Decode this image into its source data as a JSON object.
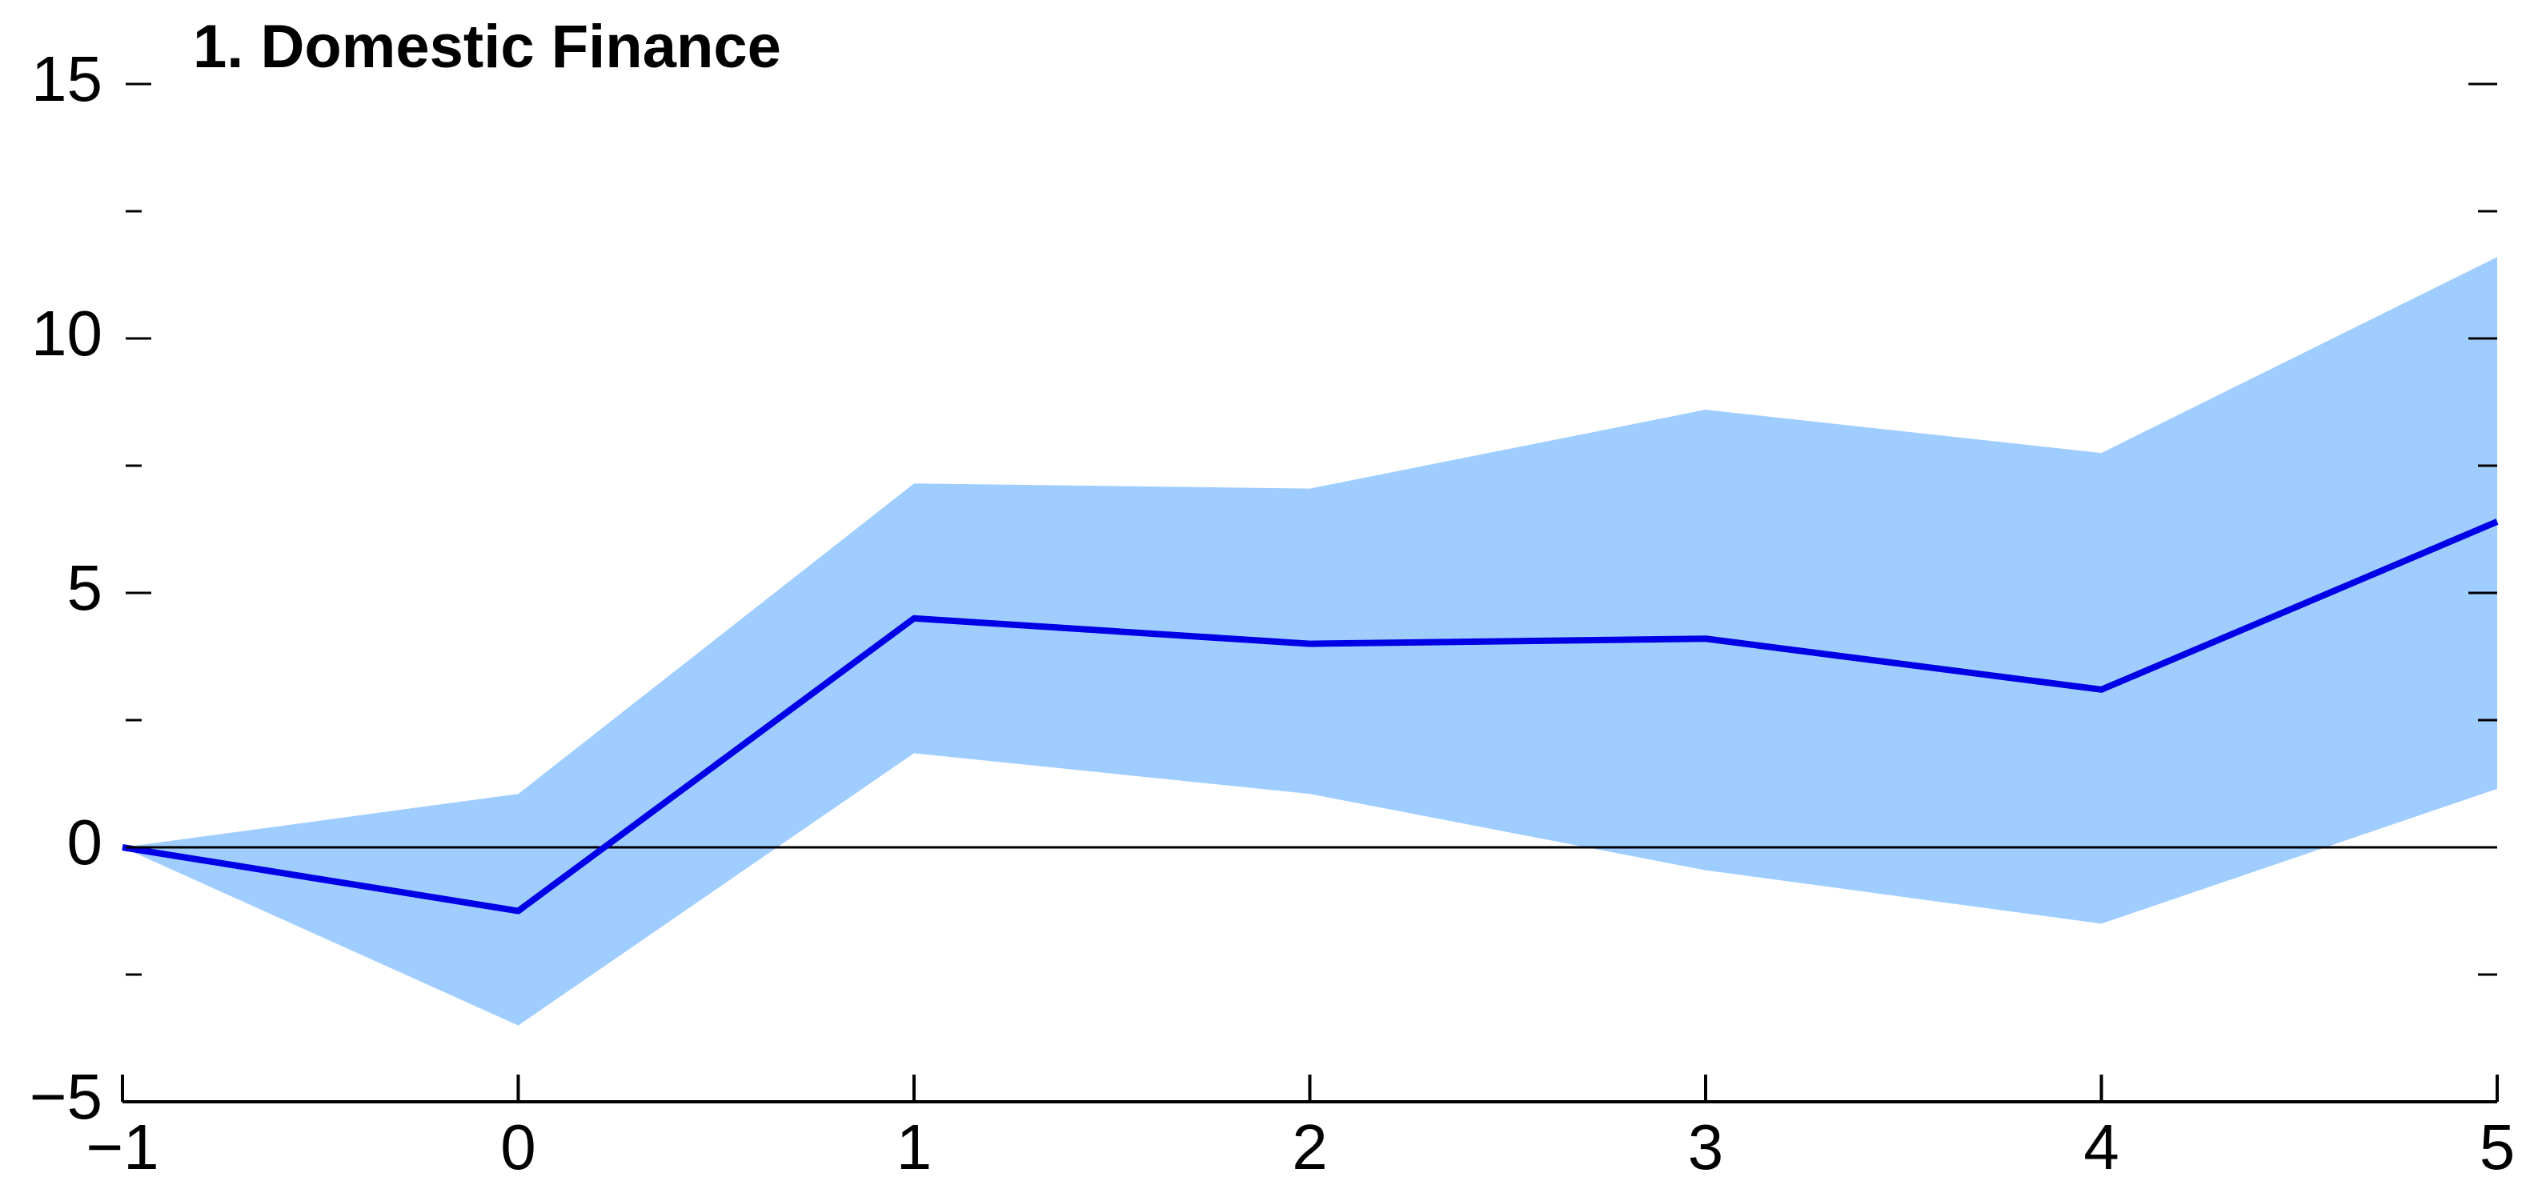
{
  "chart_data": {
    "type": "line",
    "title": "1. Domestic Finance",
    "x": [
      -1,
      0,
      1,
      2,
      3,
      4,
      5
    ],
    "values": [
      0,
      -1.25,
      4.5,
      4.0,
      4.1,
      3.1,
      6.4
    ],
    "color": "#0000e6",
    "band": {
      "upper": [
        0,
        1.05,
        7.15,
        7.05,
        8.6,
        7.75,
        11.6
      ],
      "lower": [
        0,
        -3.5,
        1.85,
        1.05,
        -0.45,
        -1.5,
        1.15
      ],
      "color": "#9fcdff"
    },
    "xlim": [
      -1,
      5
    ],
    "xticks": [
      {
        "value": -1,
        "label": "−1"
      },
      0,
      1,
      2,
      3,
      4,
      5
    ],
    "ylim": [
      -5,
      15
    ],
    "yticks": [
      {
        "value": -5,
        "label": "−5"
      },
      0,
      5,
      10,
      15
    ],
    "y_minor_ticks": [
      -2.5,
      2.5,
      7.5,
      12.5
    ],
    "zero_line": true
  }
}
